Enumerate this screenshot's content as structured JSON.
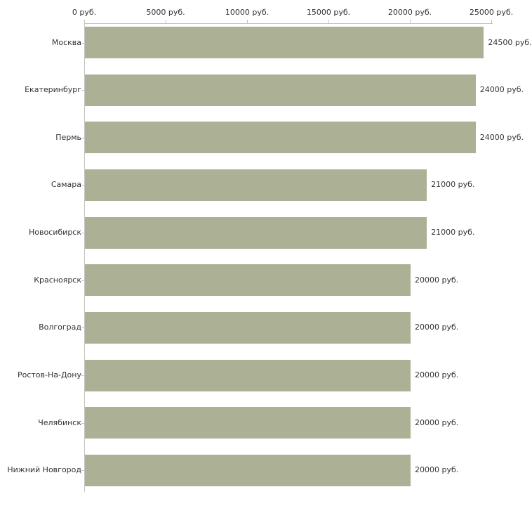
{
  "chart_data": {
    "type": "bar",
    "orientation": "horizontal",
    "title": "",
    "categories": [
      "Москва",
      "Екатеринбург",
      "Пермь",
      "Самара",
      "Новосибирск",
      "Красноярск",
      "Волгоград",
      "Ростов-На-Дону",
      "Челябинск",
      "Нижний Новгород"
    ],
    "values": [
      24500,
      24000,
      24000,
      21000,
      21000,
      20000,
      20000,
      20000,
      20000,
      20000
    ],
    "value_labels": [
      "24500 руб.",
      "24000 руб.",
      "24000 руб.",
      "21000 руб.",
      "21000 руб.",
      "20000 руб.",
      "20000 руб.",
      "20000 руб.",
      "20000 руб.",
      "20000 руб."
    ],
    "x_axis": {
      "position": "top",
      "unit": "руб.",
      "ticks": [
        0,
        5000,
        10000,
        15000,
        20000,
        25000
      ],
      "tick_labels": [
        "0 руб.",
        "5000 руб.",
        "10000 руб.",
        "15000 руб.",
        "20000 руб.",
        "25000 руб."
      ],
      "range": [
        0,
        25100
      ]
    },
    "legend": null,
    "grid": false,
    "colors": {
      "bar_fill": "#acb195",
      "axis_line": "#c3c3c3",
      "tick_mark": "#c4c7ab",
      "text": "#333333",
      "background": "#ffffff"
    }
  }
}
